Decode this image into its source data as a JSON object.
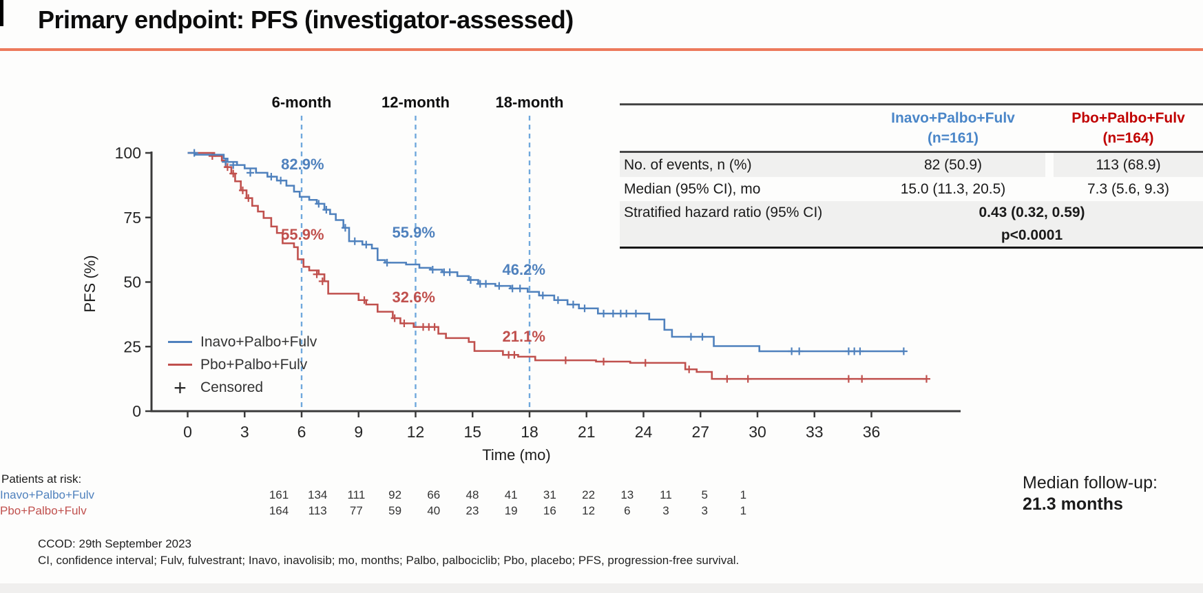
{
  "title": "Primary endpoint: PFS (investigator-assessed)",
  "colors": {
    "underline": "#ED7A5C",
    "inavo": "#4F81BD",
    "pbo": "#C0504D",
    "inavo_header": "#4A86C8",
    "pbo_header": "#C00000",
    "dashed": "#6FA8DC",
    "axis": "#3a3a3a",
    "row_shade": "#f0f0ef"
  },
  "summary_table": {
    "col_headers": [
      {
        "label": "Inavo+Palbo+Fulv",
        "sub": "(n=161)",
        "colorKey": "inavo_header"
      },
      {
        "label": "Pbo+Palbo+Fulv",
        "sub": "(n=164)",
        "colorKey": "pbo_header"
      }
    ],
    "rows": [
      {
        "label": "No. of events, n (%)",
        "values": [
          "82 (50.9)",
          "113 (68.9)"
        ]
      },
      {
        "label": "Median (95% CI), mo",
        "values": [
          "15.0 (11.3, 20.5)",
          "7.3 (5.6, 9.3)"
        ]
      },
      {
        "label": "Stratified hazard ratio (95% CI)",
        "span_value": "0.43 (0.32, 0.59)",
        "span_value2": "p<0.0001"
      }
    ]
  },
  "chart_data": {
    "type": "line",
    "subtype": "kaplan-meier-step",
    "title": "",
    "xlabel": "Time (mo)",
    "ylabel": "PFS (%)",
    "xlim": [
      0,
      40.5
    ],
    "ylim": [
      0,
      100
    ],
    "xticks": [
      0,
      3,
      6,
      9,
      12,
      15,
      18,
      21,
      24,
      27,
      30,
      33,
      36
    ],
    "yticks": [
      0,
      25,
      50,
      75,
      100
    ],
    "grid": false,
    "legend_position": "lower-left",
    "milestones": [
      {
        "x": 6,
        "label": "6-month"
      },
      {
        "x": 12,
        "label": "12-month"
      },
      {
        "x": 18,
        "label": "18-month"
      }
    ],
    "annotations": [
      {
        "text": "82.9%",
        "x": 6.05,
        "y": 93.6,
        "colorKey": "inavo"
      },
      {
        "text": "55.9%",
        "x": 6.05,
        "y": 66.4,
        "colorKey": "pbo"
      },
      {
        "text": "55.9%",
        "x": 11.9,
        "y": 67.2,
        "colorKey": "inavo"
      },
      {
        "text": "32.6%",
        "x": 11.9,
        "y": 42.1,
        "colorKey": "pbo"
      },
      {
        "text": "46.2%",
        "x": 17.7,
        "y": 52.8,
        "colorKey": "inavo"
      },
      {
        "text": "21.1%",
        "x": 17.7,
        "y": 26.9,
        "colorKey": "pbo"
      }
    ],
    "series": [
      {
        "name": "Inavo+Palbo+Fulv",
        "colorKey": "inavo",
        "landmarks": {
          "6mo": 82.9,
          "12mo": 55.9,
          "18mo": 46.2
        },
        "points": [
          [
            0,
            100
          ],
          [
            0.4,
            99.3
          ],
          [
            1.9,
            97.8
          ],
          [
            2.1,
            96.5
          ],
          [
            2.6,
            95.3
          ],
          [
            3.0,
            94
          ],
          [
            3.6,
            92.3
          ],
          [
            4.2,
            90.8
          ],
          [
            4.7,
            89.3
          ],
          [
            5.2,
            87.3
          ],
          [
            5.6,
            85
          ],
          [
            5.9,
            83
          ],
          [
            6.4,
            81.8
          ],
          [
            6.8,
            80.3
          ],
          [
            7.2,
            78
          ],
          [
            7.5,
            76.3
          ],
          [
            7.8,
            74
          ],
          [
            8.2,
            71
          ],
          [
            8.5,
            65.8
          ],
          [
            9.2,
            64.5
          ],
          [
            9.7,
            63
          ],
          [
            10.0,
            58.5
          ],
          [
            10.4,
            57.5
          ],
          [
            11.5,
            56.8
          ],
          [
            12.2,
            55.5
          ],
          [
            12.8,
            54.8
          ],
          [
            13.4,
            53.8
          ],
          [
            14.2,
            52.3
          ],
          [
            14.8,
            50.8
          ],
          [
            15.3,
            49.3
          ],
          [
            16.2,
            48.5
          ],
          [
            17.0,
            47.5
          ],
          [
            17.9,
            46.2
          ],
          [
            18.5,
            44.8
          ],
          [
            19.3,
            43
          ],
          [
            20.0,
            41.3
          ],
          [
            20.6,
            39.8
          ],
          [
            21.6,
            37.8
          ],
          [
            24.3,
            35.5
          ],
          [
            25.1,
            31.5
          ],
          [
            25.5,
            28.8
          ],
          [
            27.7,
            25.2
          ],
          [
            30.1,
            23.2
          ],
          [
            37.7,
            23.2
          ]
        ],
        "censors": [
          [
            0.35,
            100
          ],
          [
            2.0,
            96.5
          ],
          [
            2.4,
            95.3
          ],
          [
            3.3,
            92.3
          ],
          [
            4.4,
            90.8
          ],
          [
            4.9,
            89.3
          ],
          [
            6.9,
            80.3
          ],
          [
            7.3,
            78
          ],
          [
            8.3,
            71
          ],
          [
            8.8,
            65.8
          ],
          [
            9.4,
            64.5
          ],
          [
            10.5,
            57.5
          ],
          [
            12.9,
            54.8
          ],
          [
            13.5,
            53.8
          ],
          [
            13.8,
            53.8
          ],
          [
            14.9,
            50.8
          ],
          [
            15.4,
            49.3
          ],
          [
            15.7,
            49.3
          ],
          [
            16.4,
            48.5
          ],
          [
            17.1,
            47.5
          ],
          [
            17.5,
            47.5
          ],
          [
            18.7,
            44.8
          ],
          [
            19.5,
            43
          ],
          [
            20.3,
            41.3
          ],
          [
            20.9,
            39.8
          ],
          [
            21.9,
            37.8
          ],
          [
            22.4,
            37.8
          ],
          [
            22.8,
            37.8
          ],
          [
            23.1,
            37.8
          ],
          [
            23.6,
            37.8
          ],
          [
            26.5,
            28.8
          ],
          [
            27.1,
            28.8
          ],
          [
            31.8,
            23.2
          ],
          [
            32.2,
            23.2
          ],
          [
            34.8,
            23.2
          ],
          [
            35.1,
            23.2
          ],
          [
            35.4,
            23.2
          ],
          [
            37.7,
            23.2
          ]
        ]
      },
      {
        "name": "Pbo+Palbo+Fulv",
        "colorKey": "pbo",
        "landmarks": {
          "6mo": 55.9,
          "12mo": 32.6,
          "18mo": 21.1
        },
        "points": [
          [
            0,
            100
          ],
          [
            1.4,
            98.8
          ],
          [
            1.8,
            97
          ],
          [
            2.0,
            94.5
          ],
          [
            2.3,
            92
          ],
          [
            2.5,
            89
          ],
          [
            2.8,
            85.5
          ],
          [
            3.1,
            82.5
          ],
          [
            3.4,
            79.5
          ],
          [
            3.7,
            77.3
          ],
          [
            4.0,
            74.8
          ],
          [
            4.4,
            71.5
          ],
          [
            4.7,
            69
          ],
          [
            5.0,
            65
          ],
          [
            5.6,
            63.5
          ],
          [
            5.8,
            58.8
          ],
          [
            6.1,
            55.9
          ],
          [
            6.4,
            54.5
          ],
          [
            6.9,
            53
          ],
          [
            7.2,
            50.3
          ],
          [
            7.4,
            45.5
          ],
          [
            9.0,
            43
          ],
          [
            9.4,
            41.3
          ],
          [
            10.0,
            38.5
          ],
          [
            10.8,
            36
          ],
          [
            11.2,
            34
          ],
          [
            11.9,
            32.6
          ],
          [
            13.2,
            30
          ],
          [
            13.6,
            28.3
          ],
          [
            14.8,
            26.8
          ],
          [
            15.1,
            23.3
          ],
          [
            16.6,
            21.8
          ],
          [
            17.4,
            21.1
          ],
          [
            18.3,
            19.7
          ],
          [
            21.5,
            19.2
          ],
          [
            23.3,
            18.7
          ],
          [
            26.2,
            16.2
          ],
          [
            26.8,
            15.2
          ],
          [
            27.6,
            12.5
          ],
          [
            38.9,
            12.5
          ]
        ],
        "censors": [
          [
            1.3,
            98.8
          ],
          [
            2.1,
            94.5
          ],
          [
            2.4,
            92
          ],
          [
            2.9,
            85.5
          ],
          [
            3.2,
            82.5
          ],
          [
            6.8,
            53
          ],
          [
            7.1,
            50.3
          ],
          [
            9.3,
            43
          ],
          [
            10.9,
            36
          ],
          [
            11.4,
            34
          ],
          [
            12.4,
            32.6
          ],
          [
            12.7,
            32.6
          ],
          [
            13.0,
            32.6
          ],
          [
            16.9,
            21.8
          ],
          [
            17.2,
            21.8
          ],
          [
            19.9,
            19.7
          ],
          [
            21.9,
            19.2
          ],
          [
            24.1,
            18.7
          ],
          [
            26.4,
            16.2
          ],
          [
            28.4,
            12.5
          ],
          [
            29.5,
            12.5
          ],
          [
            34.8,
            12.5
          ],
          [
            35.5,
            12.5
          ],
          [
            38.9,
            12.5
          ]
        ]
      }
    ],
    "legend": [
      {
        "type": "line",
        "colorKey": "inavo",
        "label": "Inavo+Palbo+Fulv"
      },
      {
        "type": "line",
        "colorKey": "pbo",
        "label": "Pbo+Palbo+Fulv"
      },
      {
        "type": "plus",
        "plus_glyph": "+",
        "label": "Censored"
      }
    ]
  },
  "at_risk": {
    "title": "Patients at risk:",
    "rows": [
      {
        "label": "Inavo+Palbo+Fulv",
        "colorKey": "inavo",
        "counts": [
          161,
          134,
          111,
          92,
          66,
          48,
          41,
          31,
          22,
          13,
          11,
          5,
          1
        ]
      },
      {
        "label": "Pbo+Palbo+Fulv",
        "colorKey": "pbo",
        "counts": [
          164,
          113,
          77,
          59,
          40,
          23,
          19,
          16,
          12,
          6,
          3,
          3,
          1
        ]
      }
    ]
  },
  "followup": {
    "label": "Median follow-up:",
    "value": "21.3 months"
  },
  "footer": {
    "ccod": "CCOD: 29th September 2023",
    "abbrev": "CI, confidence interval; Fulv, fulvestrant; Inavo, inavolisib; mo, months; Palbo, palbociclib; Pbo, placebo; PFS, progression-free survival."
  }
}
